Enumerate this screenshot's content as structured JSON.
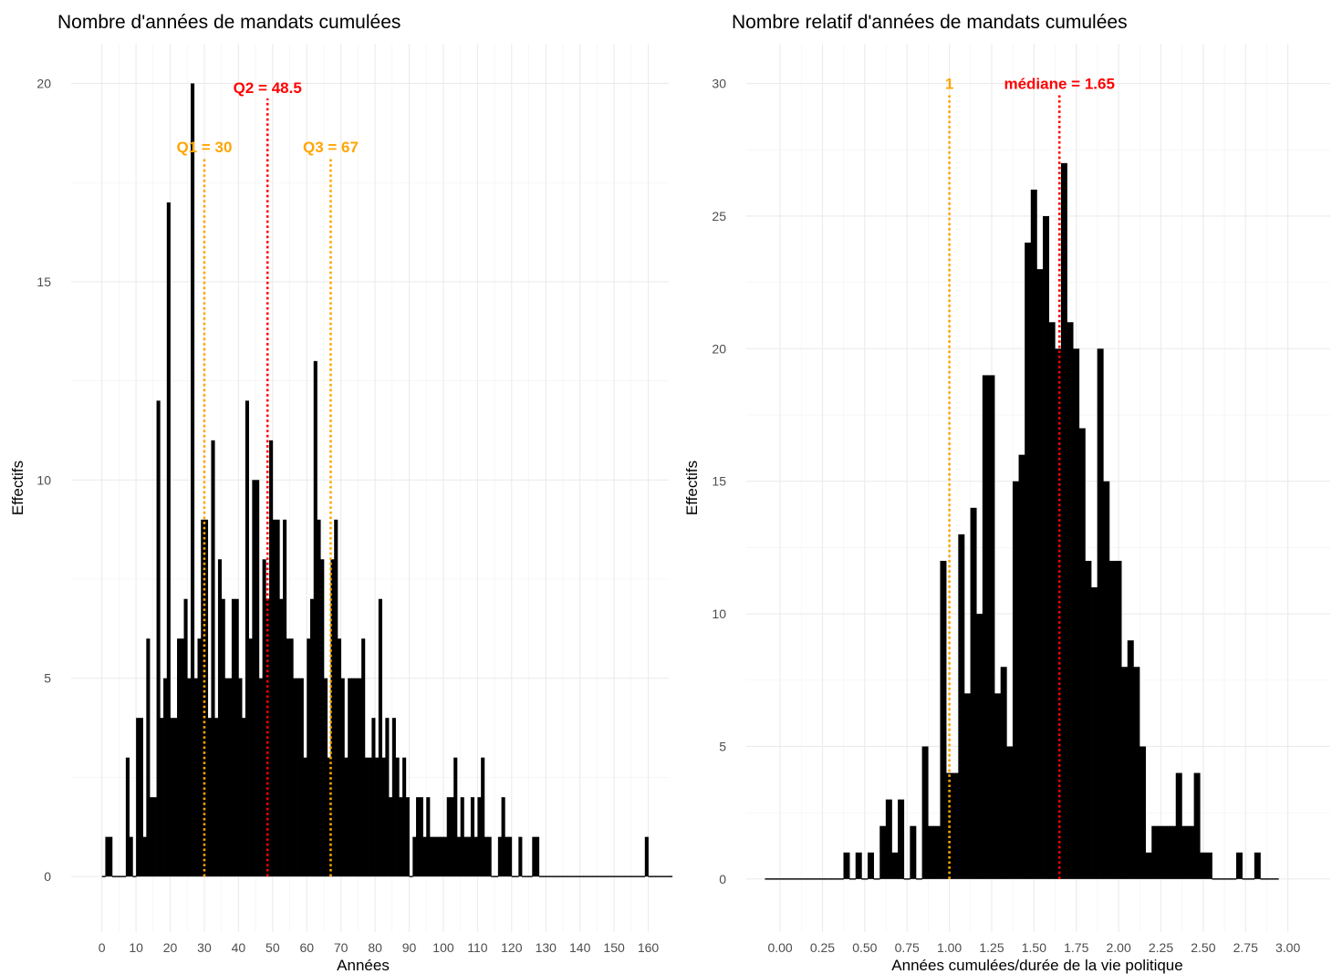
{
  "chart_data": [
    {
      "type": "bar",
      "title": "Nombre d'années de mandats cumulées",
      "xlabel": "Années",
      "ylabel": "Effectifs",
      "xlim": [
        -9,
        166
      ],
      "ylim": [
        -1.4,
        21
      ],
      "x_ticks": [
        0,
        10,
        20,
        30,
        40,
        50,
        60,
        70,
        80,
        90,
        100,
        110,
        120,
        130,
        140,
        150,
        160
      ],
      "y_ticks": [
        0,
        5,
        10,
        15,
        20
      ],
      "bin_start": 0,
      "bin_width": 1,
      "values": [
        0,
        1,
        1,
        0,
        0,
        0,
        0,
        3,
        1,
        0,
        4,
        4,
        1,
        6,
        2,
        2,
        12,
        4,
        5,
        17,
        4,
        4,
        6,
        6,
        7,
        5,
        20,
        5,
        6,
        9,
        9,
        4,
        11,
        4,
        8,
        7,
        5,
        5,
        7,
        7,
        5,
        4,
        12,
        6,
        10,
        10,
        5,
        8,
        7,
        11,
        9,
        9,
        7,
        9,
        6,
        6,
        5,
        5,
        5,
        3,
        6,
        7,
        13,
        9,
        8,
        5,
        3,
        8,
        9,
        6,
        5,
        3,
        5,
        5,
        5,
        5,
        6,
        3,
        3,
        4,
        3,
        7,
        3,
        4,
        2,
        4,
        3,
        2,
        3,
        2,
        0,
        1,
        2,
        2,
        1,
        2,
        1,
        1,
        1,
        1,
        1,
        2,
        2,
        3,
        1,
        2,
        1,
        1,
        2,
        1,
        2,
        3,
        1,
        1,
        0,
        0,
        1,
        2,
        1,
        1,
        0,
        0,
        1,
        0,
        0,
        0,
        1,
        1,
        0,
        0,
        0,
        0,
        0,
        0,
        0,
        0,
        0,
        0,
        0,
        0,
        0,
        0,
        0,
        0,
        0,
        0,
        0,
        0,
        0,
        0,
        0,
        0,
        0,
        0,
        0,
        0,
        0,
        0,
        0,
        1,
        0,
        0,
        0,
        0,
        0,
        0,
        0
      ],
      "annotations": [
        {
          "label": "Q1 = 30",
          "x": 30,
          "label_y": 18.4,
          "color": "#ffa500"
        },
        {
          "label": "Q2 = 48.5",
          "x": 48.5,
          "label_y": 19.9,
          "color": "#ff0000"
        },
        {
          "label": "Q3 = 67",
          "x": 67,
          "label_y": 18.4,
          "color": "#ffa500"
        }
      ]
    },
    {
      "type": "bar",
      "title": "Nombre relatif d'années de mandats cumulées",
      "xlabel": "Années cumulées/durée de la vie politique",
      "ylabel": "Effectifs",
      "xlim": [
        -0.2,
        3.25
      ],
      "ylim": [
        -2,
        31.5
      ],
      "x_ticks": [
        "0.00",
        "0.25",
        "0.50",
        "0.75",
        "1.00",
        "1.25",
        "1.50",
        "1.75",
        "2.00",
        "2.25",
        "2.50",
        "2.75",
        "3.00"
      ],
      "x_tick_values": [
        0,
        0.25,
        0.5,
        0.75,
        1.0,
        1.25,
        1.5,
        1.75,
        2.0,
        2.25,
        2.5,
        2.75,
        3.0
      ],
      "y_ticks": [
        0,
        5,
        10,
        15,
        20,
        25,
        30
      ],
      "bin_start": -0.09,
      "bin_width": 0.0357,
      "values": [
        0,
        0,
        0,
        0,
        0,
        0,
        0,
        0,
        0,
        0,
        0,
        0,
        0,
        1,
        0,
        1,
        0,
        1,
        0,
        2,
        3,
        1,
        3,
        0,
        2,
        0,
        5,
        2,
        2,
        12,
        4,
        4,
        13,
        7,
        14,
        10,
        19,
        19,
        7,
        8,
        5,
        15,
        16,
        24,
        26,
        23,
        25,
        21,
        20,
        27,
        21,
        20,
        17,
        12,
        11,
        20,
        15,
        12,
        12,
        8,
        9,
        8,
        5,
        1,
        2,
        2,
        2,
        2,
        4,
        2,
        2,
        4,
        1,
        1,
        0,
        0,
        0,
        0,
        1,
        0,
        0,
        1,
        0,
        0,
        0
      ],
      "annotations": [
        {
          "label": "1",
          "x": 1.0,
          "label_y": 30,
          "color": "#ffa500"
        },
        {
          "label": "médiane = 1.65",
          "x": 1.65,
          "label_y": 30,
          "color": "#ff0000"
        }
      ]
    }
  ]
}
